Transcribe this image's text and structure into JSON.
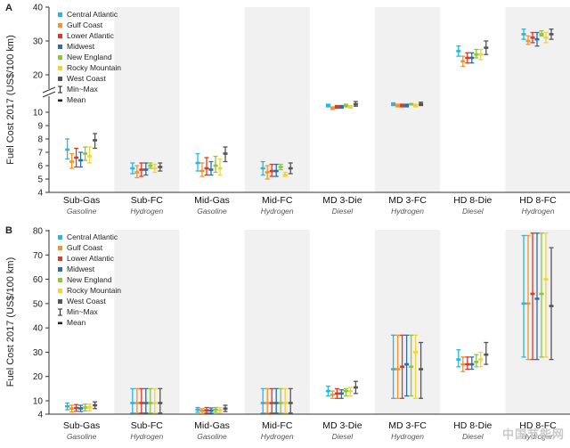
{
  "colors": {
    "Central Atlantic": "#29b6e0",
    "Gulf Coast": "#f0952a",
    "Lower Atlantic": "#d93a2b",
    "Midwest": "#2a6fa8",
    "New England": "#8cc63f",
    "Rocky Mountain": "#f3d23a",
    "West Coast": "#555555",
    "shade": "#f1f1f1"
  },
  "watermark": "中国节能网",
  "chart_data": [
    {
      "panel_label": "A",
      "type": "errorbar",
      "ylabel": "Fuel Cost  2017 (US$/100 km)",
      "yaxis": {
        "broken": true,
        "lower": {
          "min": 4,
          "max": 11,
          "ticks": [
            4,
            5,
            6,
            7,
            8,
            9,
            10
          ]
        },
        "upper": {
          "min": 15,
          "max": 40,
          "ticks": [
            20,
            30,
            40
          ]
        }
      },
      "legend": {
        "placement": "top-left",
        "items": [
          "Central Atlantic",
          "Gulf Coast",
          "Lower Atlantic",
          "Midwest",
          "New England",
          "Rocky Mountain",
          "West Coast"
        ],
        "minmax_label": "Min~Max",
        "mean_label": "Mean"
      },
      "categories": [
        {
          "name": "Sub-Gas",
          "fuel": "Gasoline"
        },
        {
          "name": "Sub-FC",
          "fuel": "Hydrogen"
        },
        {
          "name": "Mid-Gas",
          "fuel": "Gasoline"
        },
        {
          "name": "Mid-FC",
          "fuel": "Hydrogen"
        },
        {
          "name": "MD 3-Die",
          "fuel": "Diesel"
        },
        {
          "name": "MD 3-FC",
          "fuel": "Hydrogen"
        },
        {
          "name": "HD 8-Die",
          "fuel": "Diesel"
        },
        {
          "name": "HD 8-FC",
          "fuel": "Hydrogen"
        }
      ],
      "series": [
        {
          "name": "Central Atlantic",
          "mean": [
            7.2,
            5.8,
            6.2,
            5.8,
            10.5,
            10.6,
            27,
            32
          ],
          "min": [
            6.5,
            5.4,
            5.6,
            5.3,
            10.4,
            10.5,
            25.5,
            30.5
          ],
          "max": [
            8.0,
            6.2,
            6.9,
            6.3,
            10.6,
            10.7,
            28.5,
            33.5
          ]
        },
        {
          "name": "Gulf Coast",
          "mean": [
            6.3,
            5.5,
            5.6,
            5.5,
            10.3,
            10.5,
            24,
            30
          ],
          "min": [
            5.8,
            5.1,
            5.2,
            5.0,
            10.2,
            10.4,
            22.5,
            29
          ],
          "max": [
            6.9,
            6.0,
            6.2,
            6.0,
            10.4,
            10.6,
            25.5,
            31.5
          ]
        },
        {
          "name": "Lower Atlantic",
          "mean": [
            6.6,
            5.7,
            5.8,
            5.6,
            10.4,
            10.5,
            25,
            31
          ],
          "min": [
            5.9,
            5.2,
            5.3,
            5.2,
            10.3,
            10.4,
            23.5,
            29.5
          ],
          "max": [
            7.3,
            6.2,
            6.6,
            6.1,
            10.5,
            10.6,
            26.5,
            32.5
          ]
        },
        {
          "name": "Midwest",
          "mean": [
            6.4,
            5.7,
            5.7,
            5.6,
            10.4,
            10.5,
            25,
            30.5
          ],
          "min": [
            5.9,
            5.3,
            5.3,
            5.2,
            10.3,
            10.4,
            23.5,
            28.5
          ],
          "max": [
            7.0,
            6.2,
            6.3,
            6.1,
            10.5,
            10.6,
            26.5,
            32.5
          ]
        },
        {
          "name": "New England",
          "mean": [
            6.9,
            6.0,
            6.0,
            5.9,
            10.5,
            10.6,
            26,
            32
          ],
          "min": [
            6.4,
            5.8,
            5.5,
            5.7,
            10.4,
            10.55,
            25,
            31.5
          ],
          "max": [
            7.4,
            6.2,
            6.7,
            6.1,
            10.6,
            10.65,
            27.5,
            33
          ]
        },
        {
          "name": "Rocky Mountain",
          "mean": [
            6.7,
            5.8,
            5.8,
            5.3,
            10.4,
            10.5,
            26,
            31
          ],
          "min": [
            6.2,
            5.5,
            5.3,
            5.2,
            10.3,
            10.4,
            24.5,
            29.5
          ],
          "max": [
            7.4,
            6.1,
            6.5,
            5.5,
            10.5,
            10.6,
            27.5,
            32.5
          ]
        },
        {
          "name": "West Coast",
          "mean": [
            7.9,
            5.9,
            6.9,
            5.8,
            10.6,
            10.6,
            28,
            32
          ],
          "min": [
            7.3,
            5.6,
            6.3,
            5.4,
            10.45,
            10.5,
            26,
            30.5
          ],
          "max": [
            8.4,
            6.2,
            7.4,
            6.2,
            10.8,
            10.75,
            30,
            33.5
          ]
        }
      ]
    },
    {
      "panel_label": "B",
      "type": "errorbar",
      "ylabel": "Fuel Cost  2017 (US$/100 km)",
      "yaxis": {
        "min": 4,
        "max": 80,
        "ticks": [
          4,
          10,
          20,
          30,
          40,
          50,
          60,
          70,
          80
        ]
      },
      "legend": {
        "placement": "top-left",
        "items": [
          "Central Atlantic",
          "Gulf Coast",
          "Lower Atlantic",
          "Midwest",
          "New England",
          "Rocky Mountain",
          "West Coast"
        ],
        "minmax_label": "Min~Max",
        "mean_label": "Mean"
      },
      "categories": [
        {
          "name": "Sub-Gas",
          "fuel": "Gasoline"
        },
        {
          "name": "Sub-FC",
          "fuel": "Hydrogen"
        },
        {
          "name": "Mid-Gas",
          "fuel": "Gasoline"
        },
        {
          "name": "Mid-FC",
          "fuel": "Hydrogen"
        },
        {
          "name": "MD 3-Die",
          "fuel": "Diesel"
        },
        {
          "name": "MD 3-FC",
          "fuel": "Hydrogen"
        },
        {
          "name": "HD 8-Die",
          "fuel": "Diesel"
        },
        {
          "name": "HD 8-FC",
          "fuel": "Hydrogen"
        }
      ],
      "series": [
        {
          "name": "Central Atlantic",
          "mean": [
            7.5,
            9,
            6,
            9,
            14,
            23,
            27,
            50
          ],
          "min": [
            6,
            4.5,
            4.8,
            4.5,
            12,
            11,
            24,
            28
          ],
          "max": [
            9,
            15,
            7,
            15,
            16,
            37,
            31,
            78
          ]
        },
        {
          "name": "Gulf Coast",
          "mean": [
            6.5,
            9,
            5.5,
            9,
            12.5,
            23,
            25,
            50
          ],
          "min": [
            5,
            4.5,
            4.3,
            4.5,
            11,
            11,
            22,
            27
          ],
          "max": [
            8,
            15,
            6.5,
            15,
            14,
            37,
            28,
            78
          ]
        },
        {
          "name": "Lower Atlantic",
          "mean": [
            6.8,
            9,
            5.7,
            9,
            13,
            24,
            25,
            54
          ],
          "min": [
            5.3,
            4.5,
            4.5,
            4.5,
            11,
            11,
            23,
            27
          ],
          "max": [
            8.3,
            15,
            7,
            15,
            15,
            37,
            28,
            79
          ]
        },
        {
          "name": "Midwest",
          "mean": [
            6.6,
            9,
            5.6,
            9,
            13,
            25,
            25,
            52
          ],
          "min": [
            5.2,
            4.5,
            4.4,
            4.5,
            11,
            12,
            23,
            27
          ],
          "max": [
            8,
            15,
            6.8,
            15,
            14.5,
            37,
            28,
            79
          ]
        },
        {
          "name": "New England",
          "mean": [
            7,
            9,
            6,
            9,
            14,
            24,
            26,
            54
          ],
          "min": [
            5.5,
            4.5,
            4.8,
            4.5,
            12,
            12,
            24,
            28
          ],
          "max": [
            8.5,
            15,
            7,
            15,
            15,
            37,
            29,
            79
          ]
        },
        {
          "name": "Rocky Mountain",
          "mean": [
            7,
            9,
            5.8,
            9,
            14,
            30,
            27,
            60
          ],
          "min": [
            5.5,
            4.5,
            4.6,
            4.5,
            12,
            11,
            24,
            28
          ],
          "max": [
            8.5,
            15,
            7,
            15,
            15.5,
            37,
            30,
            79
          ]
        },
        {
          "name": "West Coast",
          "mean": [
            8,
            9,
            6.5,
            9,
            15.5,
            23,
            29,
            49
          ],
          "min": [
            6.5,
            4.5,
            5.2,
            4.5,
            13,
            11,
            25,
            27
          ],
          "max": [
            9.5,
            15,
            8,
            15,
            18,
            34,
            34,
            73
          ]
        }
      ]
    }
  ]
}
